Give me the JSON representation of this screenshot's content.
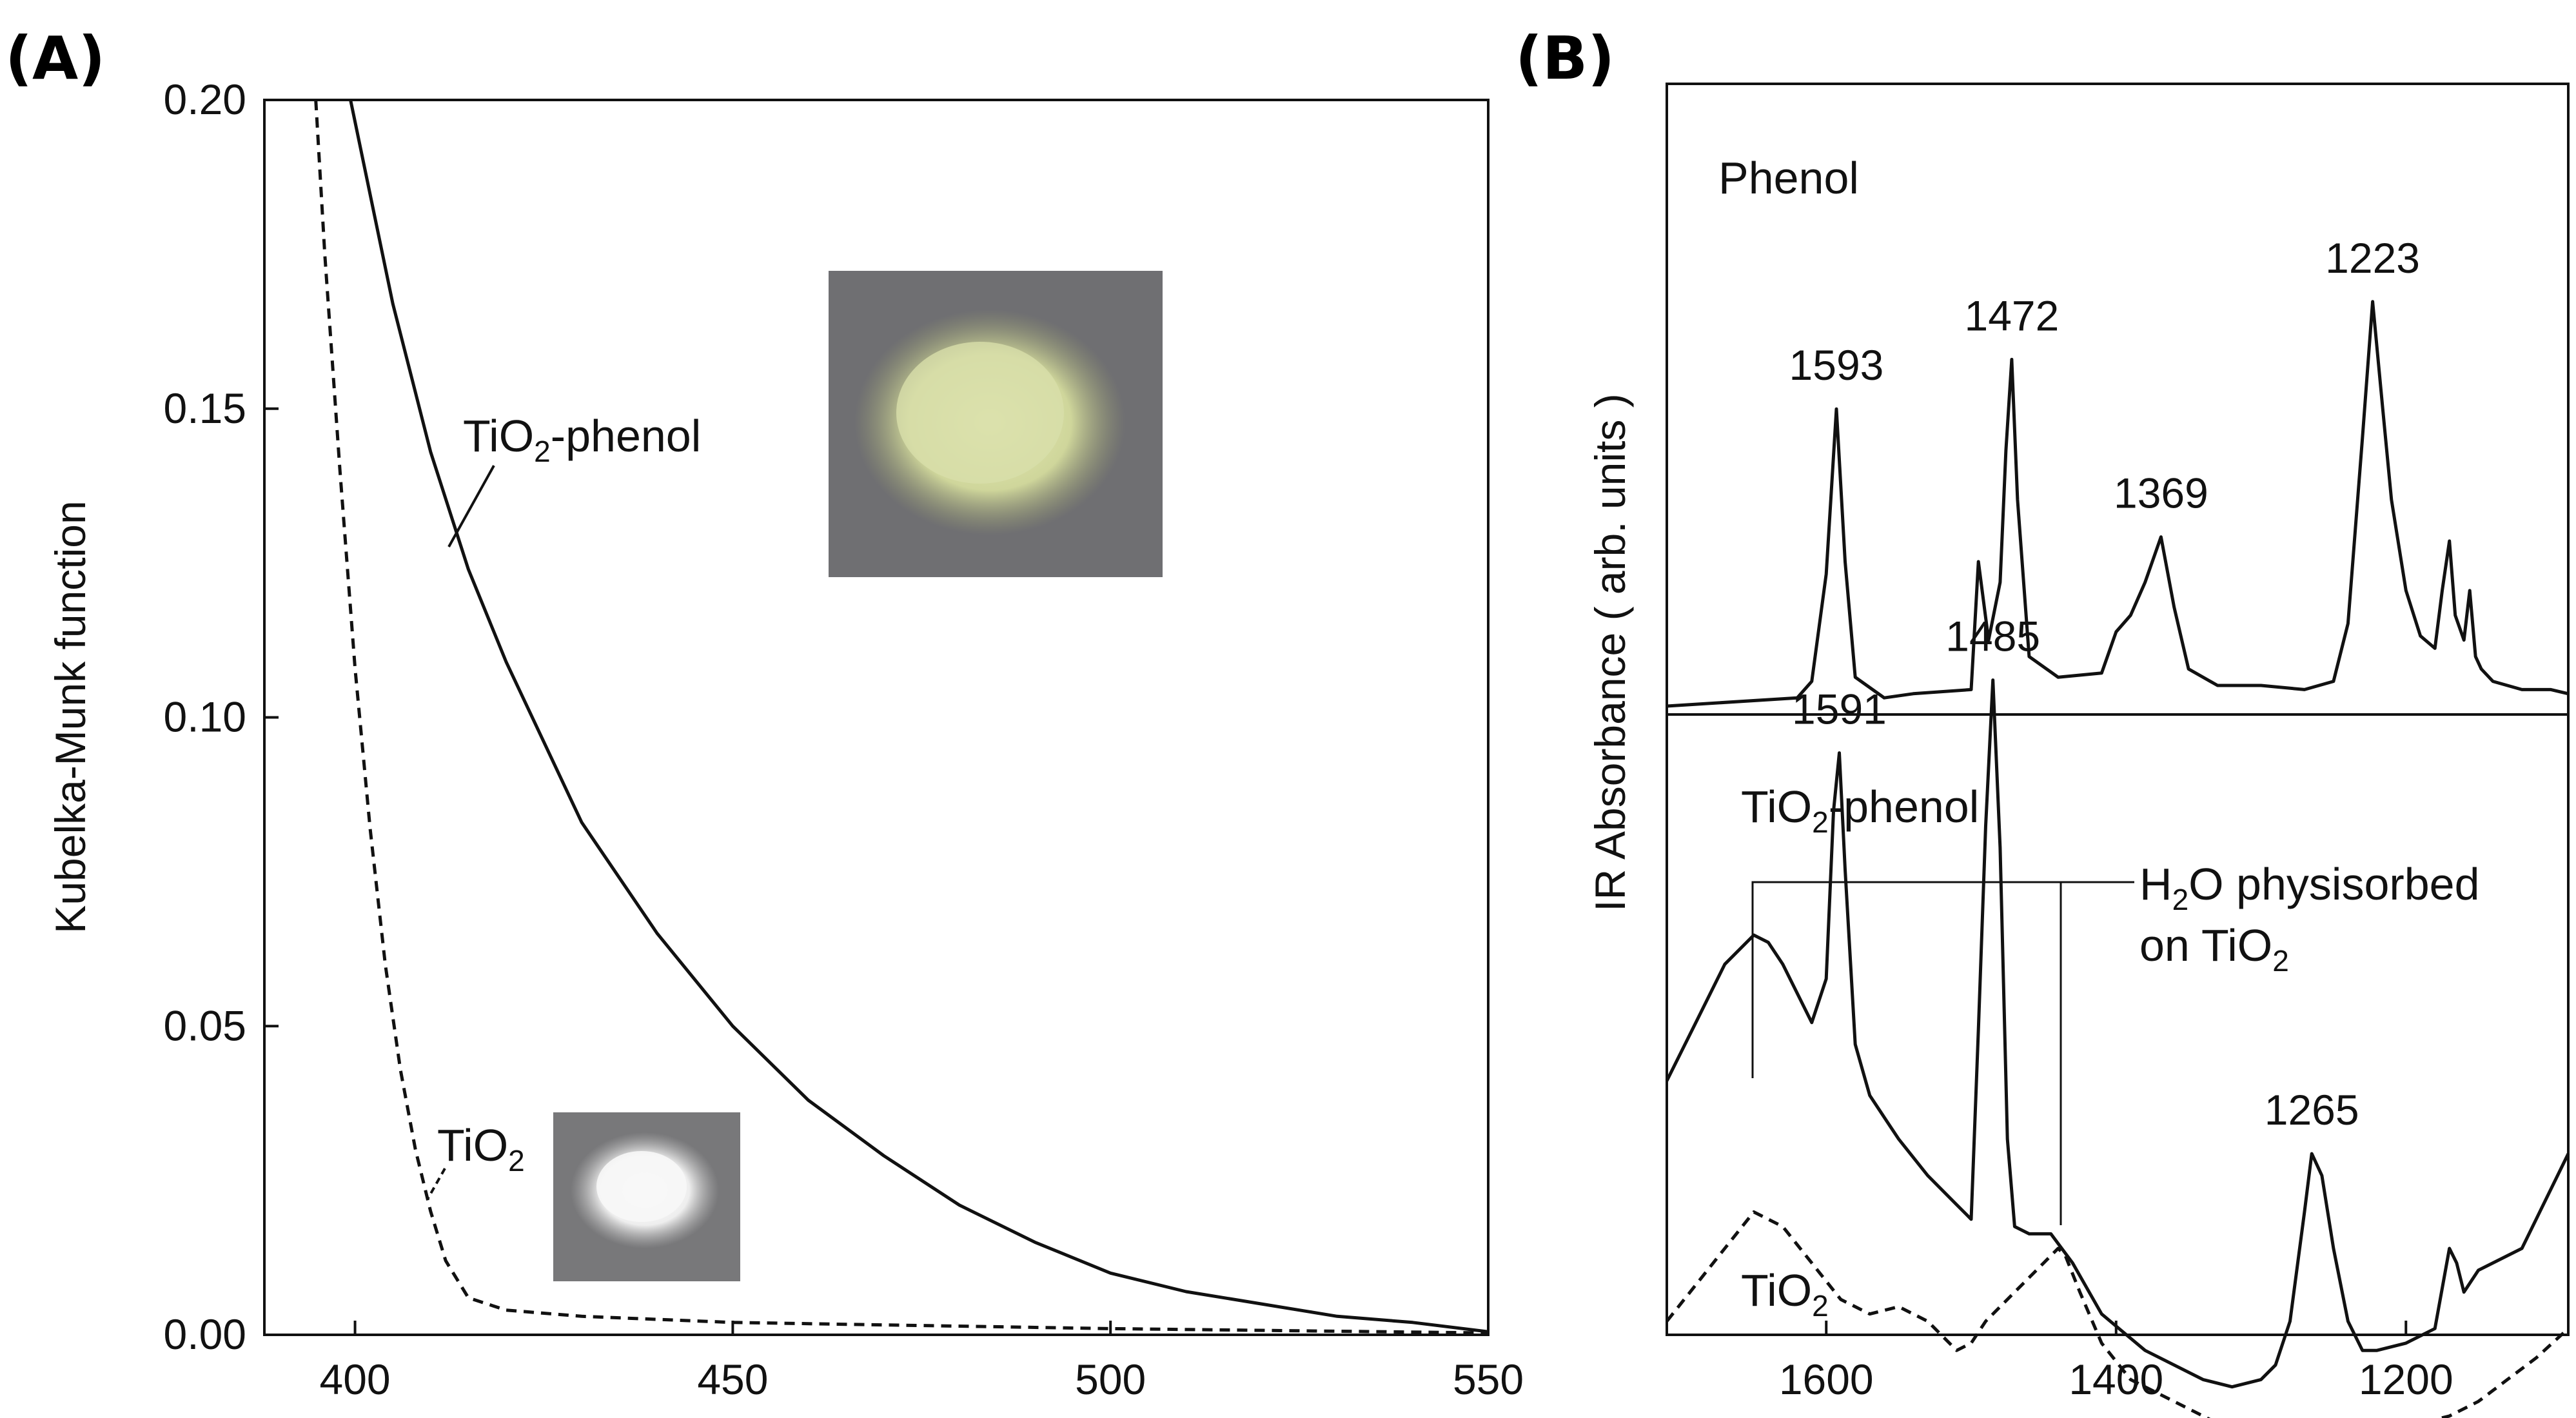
{
  "chart_data": [
    {
      "panel": "(A)",
      "type": "line",
      "ylabel": "Kubelka-Munk function",
      "xlabel": "",
      "xlim": [
        388,
        550
      ],
      "ylim": [
        0,
        0.2
      ],
      "x_ticks": [
        "400",
        "450",
        "500",
        "550"
      ],
      "x_tick_values": [
        400,
        450,
        500,
        550
      ],
      "y_ticks": [
        "0.00",
        "0.05",
        "0.10",
        "0.15",
        "0.20"
      ],
      "y_tick_values": [
        0,
        0.05,
        0.1,
        0.15,
        0.2
      ],
      "series": [
        {
          "name": "TiO2-phenol",
          "style": "solid",
          "x": [
            399.4,
            405,
            410,
            415,
            420,
            430,
            440,
            450,
            460,
            470,
            480,
            490,
            500,
            510,
            520,
            530,
            540,
            550
          ],
          "y": [
            0.2,
            0.167,
            0.143,
            0.124,
            0.109,
            0.083,
            0.065,
            0.05,
            0.038,
            0.029,
            0.021,
            0.015,
            0.01,
            0.007,
            0.005,
            0.003,
            0.002,
            0.0005
          ]
        },
        {
          "name": "TiO2",
          "style": "dashed",
          "x": [
            394.8,
            396,
            398,
            400,
            402,
            404,
            406,
            408,
            410,
            412,
            415,
            420,
            430,
            450,
            500,
            550
          ],
          "y": [
            0.2,
            0.175,
            0.14,
            0.108,
            0.082,
            0.06,
            0.043,
            0.03,
            0.02,
            0.012,
            0.006,
            0.004,
            0.003,
            0.002,
            0.001,
            0.0003
          ]
        }
      ],
      "annotations": [
        {
          "text": "TiO",
          "sub": "2",
          "suffix": "-phenol"
        },
        {
          "text": "TiO",
          "sub": "2",
          "suffix": ""
        }
      ],
      "photos": [
        "yellow-green powder photo",
        "white powder photo"
      ]
    },
    {
      "panel": "(B)",
      "type": "line",
      "ylabel": "IR Absorbance ( arb. units )",
      "xlabel": "",
      "xlim": [
        1710,
        1088
      ],
      "x_ticks": [
        "1600",
        "1400",
        "1200"
      ],
      "x_tick_values": [
        1600,
        1400,
        1200
      ],
      "x_reversed": true,
      "subplots": [
        {
          "label": "Phenol",
          "peaks": [
            {
              "x": 1593,
              "label": "1593"
            },
            {
              "x": 1472,
              "label": "1472"
            },
            {
              "x": 1369,
              "label": "1369"
            },
            {
              "x": 1223,
              "label": "1223"
            }
          ],
          "series": [
            {
              "name": "Phenol",
              "style": "solid",
              "x": [
                1710,
                1620,
                1610,
                1600,
                1593,
                1587,
                1580,
                1560,
                1540,
                1500,
                1495,
                1488,
                1480,
                1476,
                1472,
                1468,
                1460,
                1440,
                1410,
                1400,
                1390,
                1380,
                1369,
                1360,
                1350,
                1330,
                1300,
                1270,
                1250,
                1240,
                1230,
                1223,
                1216,
                1210,
                1200,
                1190,
                1180,
                1175,
                1170,
                1166,
                1160,
                1156,
                1152,
                1148,
                1140,
                1120,
                1100,
                1088
              ],
              "y": [
                0.0,
                0.02,
                0.06,
                0.32,
                0.72,
                0.35,
                0.07,
                0.02,
                0.03,
                0.04,
                0.35,
                0.16,
                0.3,
                0.62,
                0.84,
                0.5,
                0.12,
                0.07,
                0.08,
                0.18,
                0.22,
                0.3,
                0.41,
                0.24,
                0.09,
                0.05,
                0.05,
                0.04,
                0.06,
                0.2,
                0.65,
                0.98,
                0.72,
                0.5,
                0.28,
                0.17,
                0.14,
                0.28,
                0.4,
                0.22,
                0.16,
                0.28,
                0.12,
                0.09,
                0.06,
                0.04,
                0.04,
                0.03
              ]
            }
          ]
        },
        {
          "label": "TiO",
          "label_sub": "2",
          "label_suffix": "-phenol",
          "peaks": [
            {
              "x": 1591,
              "label": "1591"
            },
            {
              "x": 1485,
              "label": "1485"
            },
            {
              "x": 1265,
              "label": "1265"
            }
          ],
          "bracket_label_lines": [
            {
              "text": "H",
              "sub": "2",
              "suffix": "O physisorbed"
            },
            {
              "text": "on TiO",
              "sub": "2",
              "suffix": ""
            }
          ],
          "series": [
            {
              "name": "TiO2-phenol",
              "style": "solid",
              "x": [
                1710,
                1690,
                1670,
                1650,
                1640,
                1630,
                1620,
                1610,
                1600,
                1595,
                1591,
                1587,
                1580,
                1570,
                1560,
                1550,
                1530,
                1510,
                1500,
                1495,
                1490,
                1485,
                1480,
                1475,
                1470,
                1460,
                1445,
                1430,
                1410,
                1380,
                1340,
                1320,
                1300,
                1290,
                1280,
                1270,
                1265,
                1258,
                1250,
                1240,
                1230,
                1220,
                1200,
                1180,
                1170,
                1165,
                1160,
                1150,
                1120,
                1088
              ],
              "y": [
                0.03,
                0.11,
                0.19,
                0.23,
                0.22,
                0.19,
                0.15,
                0.11,
                0.17,
                0.4,
                0.48,
                0.32,
                0.08,
                0.01,
                -0.02,
                -0.05,
                -0.1,
                -0.14,
                -0.16,
                0.1,
                0.38,
                0.58,
                0.35,
                -0.05,
                -0.17,
                -0.18,
                -0.18,
                -0.22,
                -0.29,
                -0.34,
                -0.38,
                -0.39,
                -0.38,
                -0.36,
                -0.3,
                -0.15,
                -0.07,
                -0.1,
                -0.2,
                -0.3,
                -0.34,
                -0.34,
                -0.33,
                -0.31,
                -0.2,
                -0.22,
                -0.26,
                -0.23,
                -0.2,
                -0.07
              ]
            },
            {
              "name": "TiO2",
              "style": "dashed",
              "x": [
                1710,
                1690,
                1670,
                1650,
                1630,
                1610,
                1590,
                1570,
                1550,
                1530,
                1510,
                1500,
                1490,
                1470,
                1450,
                1440,
                1435,
                1425,
                1410,
                1390,
                1370,
                1350,
                1330,
                1310,
                1290,
                1270,
                1250,
                1230,
                1210,
                1190,
                1170,
                1150,
                1130,
                1110,
                1088
              ],
              "y": [
                -0.3,
                -0.25,
                -0.2,
                -0.15,
                -0.17,
                -0.22,
                -0.27,
                -0.29,
                -0.28,
                -0.3,
                -0.34,
                -0.33,
                -0.3,
                -0.26,
                -0.22,
                -0.2,
                -0.21,
                -0.26,
                -0.33,
                -0.38,
                -0.4,
                -0.42,
                -0.44,
                -0.46,
                -0.47,
                -0.47,
                -0.47,
                -0.46,
                -0.45,
                -0.44,
                -0.43,
                -0.41,
                -0.38,
                -0.35,
                -0.31
              ]
            }
          ],
          "annotation_dashed": {
            "text": "TiO",
            "sub": "2",
            "suffix": ""
          }
        }
      ]
    }
  ]
}
